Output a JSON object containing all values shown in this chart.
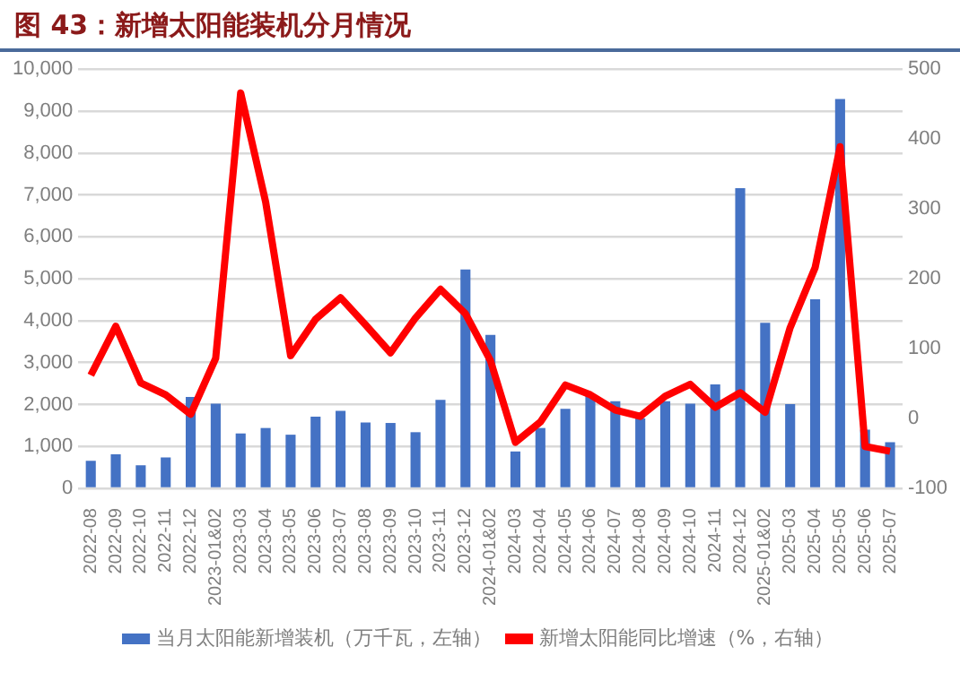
{
  "chart_data": {
    "type": "bar",
    "title": "图 43：新增太阳能装机分月情况",
    "categories": [
      "2022-08",
      "2022-09",
      "2022-10",
      "2022-11",
      "2022-12",
      "2023-01&02",
      "2023-03",
      "2023-04",
      "2023-05",
      "2023-06",
      "2023-07",
      "2023-08",
      "2023-09",
      "2023-10",
      "2023-11",
      "2023-12",
      "2024-01&02",
      "2024-03",
      "2024-04",
      "2024-05",
      "2024-06",
      "2024-07",
      "2024-08",
      "2024-09",
      "2024-10",
      "2024-11",
      "2024-12",
      "2025-01&02",
      "2025-03",
      "2025-04",
      "2025-05",
      "2025-06",
      "2025-07"
    ],
    "series": [
      {
        "name": "当月太阳能新增装机（万千瓦，左轴）",
        "color": "#4472c4",
        "values": [
          660,
          810,
          550,
          740,
          2180,
          2020,
          1310,
          1440,
          1280,
          1710,
          1850,
          1570,
          1560,
          1340,
          2110,
          5220,
          3660,
          880,
          1440,
          1900,
          2240,
          2080,
          1670,
          2080,
          2020,
          2480,
          7160,
          3950,
          2010,
          4510,
          9290,
          1400,
          1100
        ]
      },
      {
        "name": "新增太阳能同比增速（%，右轴）",
        "type": "line",
        "axis": "y2",
        "color": "#ff0000",
        "values": [
          62,
          132,
          51,
          34,
          6,
          86,
          466,
          310,
          90,
          142,
          173,
          134,
          94,
          144,
          185,
          150,
          83,
          -34,
          -5,
          48,
          34,
          12,
          3,
          32,
          49,
          16,
          37,
          9,
          130,
          216,
          389,
          -40,
          -47
        ]
      }
    ],
    "ylim": [
      0,
      10000
    ],
    "yticks": [
      {
        "value": 0,
        "label": "0"
      },
      {
        "value": 1000,
        "label": "1,000"
      },
      {
        "value": 2000,
        "label": "2,000"
      },
      {
        "value": 3000,
        "label": "3,000"
      },
      {
        "value": 4000,
        "label": "4,000"
      },
      {
        "value": 5000,
        "label": "5,000"
      },
      {
        "value": 6000,
        "label": "6,000"
      },
      {
        "value": 7000,
        "label": "7,000"
      },
      {
        "value": 8000,
        "label": "8,000"
      },
      {
        "value": 9000,
        "label": "9,000"
      },
      {
        "value": 10000,
        "label": "10,000"
      }
    ],
    "y2lim": [
      -100,
      500
    ],
    "y2ticks": [
      -100,
      0,
      100,
      200,
      300,
      400,
      500
    ],
    "grid": "y",
    "legend": "bottom",
    "marker": "none",
    "line_style": "solid"
  }
}
